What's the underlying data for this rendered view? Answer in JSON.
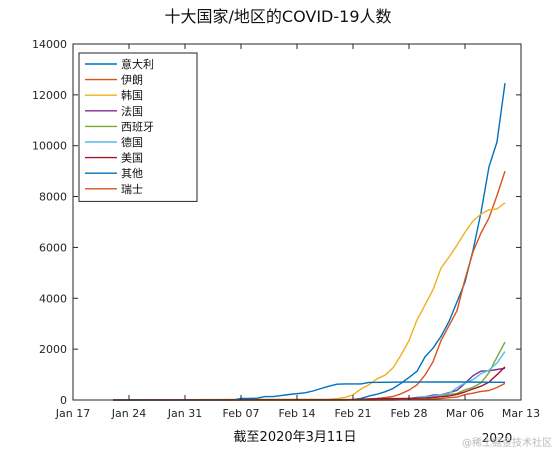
{
  "chart_data": {
    "type": "line",
    "title": "十大国家/地区的COVID-19人数",
    "caption": "截至2020年3月11日",
    "year_label": "2020",
    "ylim": [
      0,
      14000
    ],
    "y_ticks": [
      0,
      2000,
      4000,
      6000,
      8000,
      10000,
      12000,
      14000
    ],
    "x_domain": [
      "2020-01-17",
      "2020-03-13"
    ],
    "x_ticks": [
      {
        "date": "2020-01-17",
        "label": "Jan 17"
      },
      {
        "date": "2020-01-24",
        "label": "Jan 24"
      },
      {
        "date": "2020-01-31",
        "label": "Jan 31"
      },
      {
        "date": "2020-02-07",
        "label": "Feb 07"
      },
      {
        "date": "2020-02-14",
        "label": "Feb 14"
      },
      {
        "date": "2020-02-21",
        "label": "Feb 21"
      },
      {
        "date": "2020-02-28",
        "label": "Feb 28"
      },
      {
        "date": "2020-03-06",
        "label": "Mar 06"
      },
      {
        "date": "2020-03-13",
        "label": "Mar 13"
      }
    ],
    "legend_position": "top-left",
    "grid": false,
    "series": [
      {
        "name": "意大利",
        "color": "#0072BD",
        "points": [
          [
            "2020-01-22",
            0
          ],
          [
            "2020-02-20",
            0
          ],
          [
            "2020-02-21",
            20
          ],
          [
            "2020-02-22",
            62
          ],
          [
            "2020-02-23",
            155
          ],
          [
            "2020-02-24",
            229
          ],
          [
            "2020-02-25",
            322
          ],
          [
            "2020-02-26",
            453
          ],
          [
            "2020-02-27",
            655
          ],
          [
            "2020-02-28",
            888
          ],
          [
            "2020-02-29",
            1128
          ],
          [
            "2020-03-01",
            1694
          ],
          [
            "2020-03-02",
            2036
          ],
          [
            "2020-03-03",
            2502
          ],
          [
            "2020-03-04",
            3089
          ],
          [
            "2020-03-05",
            3858
          ],
          [
            "2020-03-06",
            4636
          ],
          [
            "2020-03-07",
            5883
          ],
          [
            "2020-03-08",
            7375
          ],
          [
            "2020-03-09",
            9172
          ],
          [
            "2020-03-10",
            10149
          ],
          [
            "2020-03-11",
            12462
          ]
        ]
      },
      {
        "name": "伊朗",
        "color": "#D95319",
        "points": [
          [
            "2020-01-22",
            0
          ],
          [
            "2020-02-18",
            0
          ],
          [
            "2020-02-19",
            2
          ],
          [
            "2020-02-20",
            5
          ],
          [
            "2020-02-21",
            18
          ],
          [
            "2020-02-22",
            28
          ],
          [
            "2020-02-23",
            43
          ],
          [
            "2020-02-24",
            61
          ],
          [
            "2020-02-25",
            95
          ],
          [
            "2020-02-26",
            139
          ],
          [
            "2020-02-27",
            245
          ],
          [
            "2020-02-28",
            388
          ],
          [
            "2020-02-29",
            593
          ],
          [
            "2020-03-01",
            978
          ],
          [
            "2020-03-02",
            1501
          ],
          [
            "2020-03-03",
            2336
          ],
          [
            "2020-03-04",
            2922
          ],
          [
            "2020-03-05",
            3513
          ],
          [
            "2020-03-06",
            4747
          ],
          [
            "2020-03-07",
            5823
          ],
          [
            "2020-03-08",
            6566
          ],
          [
            "2020-03-09",
            7161
          ],
          [
            "2020-03-10",
            8042
          ],
          [
            "2020-03-11",
            9000
          ]
        ]
      },
      {
        "name": "韩国",
        "color": "#EDB120",
        "points": [
          [
            "2020-01-22",
            1
          ],
          [
            "2020-01-27",
            4
          ],
          [
            "2020-01-31",
            11
          ],
          [
            "2020-02-05",
            19
          ],
          [
            "2020-02-10",
            27
          ],
          [
            "2020-02-15",
            28
          ],
          [
            "2020-02-18",
            31
          ],
          [
            "2020-02-19",
            51
          ],
          [
            "2020-02-20",
            104
          ],
          [
            "2020-02-21",
            204
          ],
          [
            "2020-02-22",
            433
          ],
          [
            "2020-02-23",
            602
          ],
          [
            "2020-02-24",
            833
          ],
          [
            "2020-02-25",
            977
          ],
          [
            "2020-02-26",
            1261
          ],
          [
            "2020-02-27",
            1766
          ],
          [
            "2020-02-28",
            2337
          ],
          [
            "2020-02-29",
            3150
          ],
          [
            "2020-03-01",
            3736
          ],
          [
            "2020-03-02",
            4335
          ],
          [
            "2020-03-03",
            5186
          ],
          [
            "2020-03-04",
            5621
          ],
          [
            "2020-03-05",
            6088
          ],
          [
            "2020-03-06",
            6593
          ],
          [
            "2020-03-07",
            7041
          ],
          [
            "2020-03-08",
            7314
          ],
          [
            "2020-03-09",
            7478
          ],
          [
            "2020-03-10",
            7513
          ],
          [
            "2020-03-11",
            7755
          ]
        ]
      },
      {
        "name": "法国",
        "color": "#7E2F8E",
        "points": [
          [
            "2020-01-22",
            0
          ],
          [
            "2020-01-24",
            2
          ],
          [
            "2020-01-25",
            3
          ],
          [
            "2020-01-29",
            5
          ],
          [
            "2020-01-31",
            6
          ],
          [
            "2020-02-08",
            11
          ],
          [
            "2020-02-15",
            12
          ],
          [
            "2020-02-25",
            14
          ],
          [
            "2020-02-26",
            18
          ],
          [
            "2020-02-27",
            38
          ],
          [
            "2020-02-28",
            57
          ],
          [
            "2020-02-29",
            100
          ],
          [
            "2020-03-01",
            130
          ],
          [
            "2020-03-02",
            191
          ],
          [
            "2020-03-03",
            204
          ],
          [
            "2020-03-04",
            288
          ],
          [
            "2020-03-05",
            380
          ],
          [
            "2020-03-06",
            656
          ],
          [
            "2020-03-07",
            957
          ],
          [
            "2020-03-08",
            1136
          ],
          [
            "2020-03-09",
            1150
          ],
          [
            "2020-03-10",
            1200
          ],
          [
            "2020-03-11",
            1250
          ]
        ]
      },
      {
        "name": "西班牙",
        "color": "#77AC30",
        "points": [
          [
            "2020-01-22",
            0
          ],
          [
            "2020-02-01",
            1
          ],
          [
            "2020-02-09",
            2
          ],
          [
            "2020-02-24",
            2
          ],
          [
            "2020-02-25",
            6
          ],
          [
            "2020-02-26",
            13
          ],
          [
            "2020-02-27",
            15
          ],
          [
            "2020-02-28",
            32
          ],
          [
            "2020-02-29",
            45
          ],
          [
            "2020-03-01",
            84
          ],
          [
            "2020-03-02",
            120
          ],
          [
            "2020-03-03",
            165
          ],
          [
            "2020-03-04",
            222
          ],
          [
            "2020-03-05",
            259
          ],
          [
            "2020-03-06",
            400
          ],
          [
            "2020-03-07",
            500
          ],
          [
            "2020-03-08",
            673
          ],
          [
            "2020-03-09",
            1073
          ],
          [
            "2020-03-10",
            1695
          ],
          [
            "2020-03-11",
            2277
          ]
        ]
      },
      {
        "name": "德国",
        "color": "#4DBEEE",
        "points": [
          [
            "2020-01-22",
            0
          ],
          [
            "2020-01-27",
            1
          ],
          [
            "2020-01-28",
            4
          ],
          [
            "2020-01-31",
            5
          ],
          [
            "2020-02-03",
            12
          ],
          [
            "2020-02-13",
            16
          ],
          [
            "2020-02-25",
            17
          ],
          [
            "2020-02-26",
            27
          ],
          [
            "2020-02-27",
            46
          ],
          [
            "2020-02-28",
            48
          ],
          [
            "2020-02-29",
            79
          ],
          [
            "2020-03-01",
            130
          ],
          [
            "2020-03-02",
            159
          ],
          [
            "2020-03-03",
            196
          ],
          [
            "2020-03-04",
            262
          ],
          [
            "2020-03-05",
            482
          ],
          [
            "2020-03-06",
            670
          ],
          [
            "2020-03-07",
            799
          ],
          [
            "2020-03-08",
            1040
          ],
          [
            "2020-03-09",
            1176
          ],
          [
            "2020-03-10",
            1457
          ],
          [
            "2020-03-11",
            1908
          ]
        ]
      },
      {
        "name": "美国",
        "color": "#A2142F",
        "points": [
          [
            "2020-01-22",
            1
          ],
          [
            "2020-01-31",
            7
          ],
          [
            "2020-02-10",
            12
          ],
          [
            "2020-02-21",
            15
          ],
          [
            "2020-02-24",
            51
          ],
          [
            "2020-02-28",
            60
          ],
          [
            "2020-03-01",
            74
          ],
          [
            "2020-03-02",
            100
          ],
          [
            "2020-03-03",
            124
          ],
          [
            "2020-03-04",
            158
          ],
          [
            "2020-03-05",
            221
          ],
          [
            "2020-03-06",
            319
          ],
          [
            "2020-03-07",
            435
          ],
          [
            "2020-03-08",
            541
          ],
          [
            "2020-03-09",
            704
          ],
          [
            "2020-03-10",
            994
          ],
          [
            "2020-03-11",
            1301
          ]
        ]
      },
      {
        "name": "其他",
        "color": "#0072BD",
        "points": [
          [
            "2020-01-22",
            0
          ],
          [
            "2020-02-06",
            0
          ],
          [
            "2020-02-07",
            61
          ],
          [
            "2020-02-08",
            64
          ],
          [
            "2020-02-09",
            70
          ],
          [
            "2020-02-10",
            135
          ],
          [
            "2020-02-11",
            135
          ],
          [
            "2020-02-12",
            175
          ],
          [
            "2020-02-13",
            218
          ],
          [
            "2020-02-15",
            285
          ],
          [
            "2020-02-16",
            355
          ],
          [
            "2020-02-17",
            454
          ],
          [
            "2020-02-18",
            542
          ],
          [
            "2020-02-19",
            621
          ],
          [
            "2020-02-20",
            634
          ],
          [
            "2020-02-22",
            634
          ],
          [
            "2020-02-23",
            691
          ],
          [
            "2020-02-27",
            705
          ],
          [
            "2020-03-05",
            706
          ],
          [
            "2020-03-11",
            696
          ]
        ]
      },
      {
        "name": "瑞士",
        "color": "#D95319",
        "points": [
          [
            "2020-01-22",
            0
          ],
          [
            "2020-02-24",
            0
          ],
          [
            "2020-02-25",
            1
          ],
          [
            "2020-02-26",
            1
          ],
          [
            "2020-02-27",
            8
          ],
          [
            "2020-02-28",
            8
          ],
          [
            "2020-02-29",
            18
          ],
          [
            "2020-03-01",
            27
          ],
          [
            "2020-03-02",
            42
          ],
          [
            "2020-03-03",
            56
          ],
          [
            "2020-03-04",
            90
          ],
          [
            "2020-03-05",
            114
          ],
          [
            "2020-03-06",
            214
          ],
          [
            "2020-03-07",
            268
          ],
          [
            "2020-03-08",
            337
          ],
          [
            "2020-03-09",
            374
          ],
          [
            "2020-03-10",
            491
          ],
          [
            "2020-03-11",
            652
          ]
        ]
      }
    ]
  },
  "watermark": "@稀土掘金技术社区"
}
